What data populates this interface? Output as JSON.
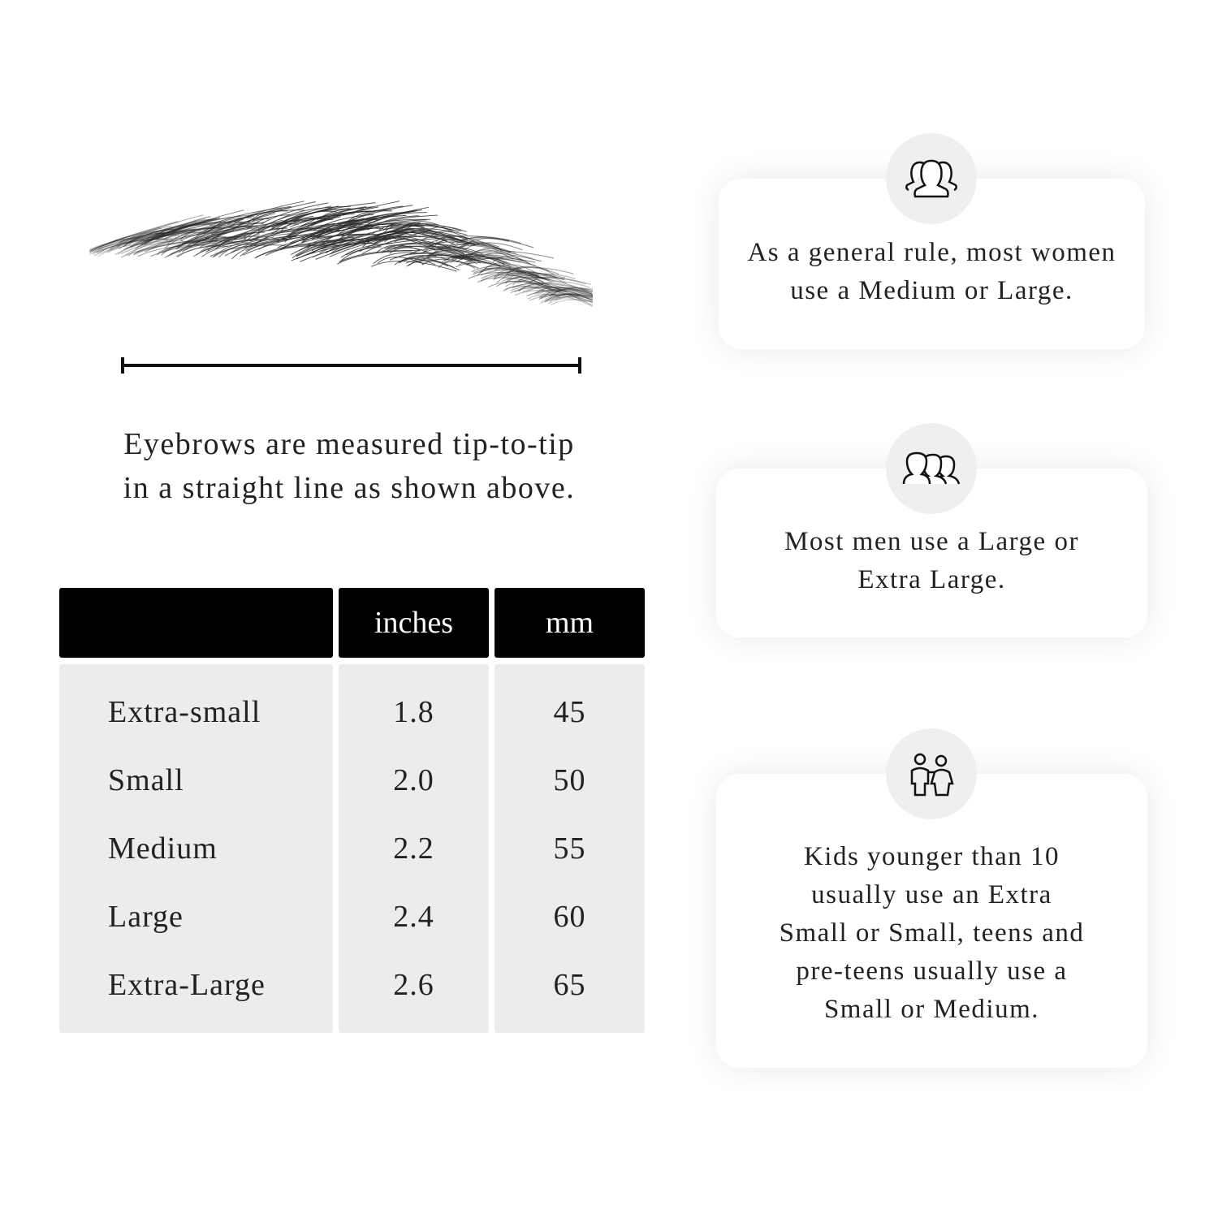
{
  "measurement": {
    "caption_line1": "Eyebrows are measured tip-to-tip",
    "caption_line2": "in a straight line as shown above."
  },
  "table": {
    "headers": [
      "",
      "inches",
      "mm"
    ],
    "rows": [
      {
        "size": "Extra-small",
        "inches": "1.8",
        "mm": "45"
      },
      {
        "size": "Small",
        "inches": "2.0",
        "mm": "50"
      },
      {
        "size": "Medium",
        "inches": "2.2",
        "mm": "55"
      },
      {
        "size": "Large",
        "inches": "2.4",
        "mm": "60"
      },
      {
        "size": "Extra-Large",
        "inches": "2.6",
        "mm": "65"
      }
    ]
  },
  "cards": [
    {
      "icon": "women-group-icon",
      "line1": "As a general rule, most women",
      "line2": "use a Medium or Large."
    },
    {
      "icon": "men-group-icon",
      "line1": "Most men use a Large or",
      "line2": "Extra Large."
    },
    {
      "icon": "kids-icon",
      "lines": [
        "Kids younger than 10",
        "usually use an Extra",
        "Small or Small, teens and",
        "pre-teens usually use a",
        "Small or Medium."
      ]
    }
  ]
}
